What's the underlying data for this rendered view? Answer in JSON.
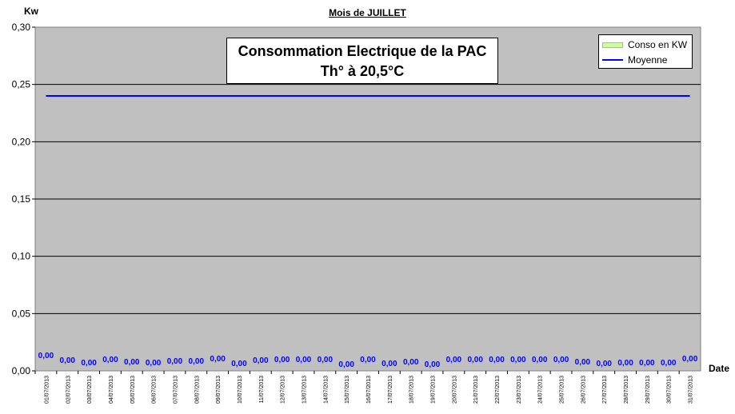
{
  "header": {
    "y_unit": "Kw",
    "month_title": "Mois  de  JUILLET",
    "x_unit": "Date"
  },
  "title_box": {
    "line1": "Consommation Electrique de la PAC",
    "line2": "Th° à  20,5°C"
  },
  "legend": {
    "items": [
      {
        "label": "Conso en KW",
        "color": "#ccff99"
      },
      {
        "label": "Moyenne",
        "color": "#0000ff"
      }
    ]
  },
  "colors": {
    "plot_background": "#c0c0c0",
    "gridline": "#000000",
    "average_line": "#0000ff",
    "data_label": "#0000ff"
  },
  "chart_data": {
    "type": "bar",
    "ylim": [
      0,
      0.3
    ],
    "yticks": [
      "0,00",
      "0,05",
      "0,10",
      "0,15",
      "0,20",
      "0,25",
      "0,30"
    ],
    "grid": true,
    "legend_position": "top-right",
    "categories": [
      "01/07/2013",
      "02/07/2013",
      "03/07/2013",
      "04/07/2013",
      "05/07/2013",
      "06/07/2013",
      "07/07/2013",
      "08/07/2013",
      "09/07/2013",
      "10/07/2013",
      "11/07/2013",
      "12/07/2013",
      "13/07/2013",
      "14/07/2013",
      "15/07/2013",
      "16/07/2013",
      "17/07/2013",
      "18/07/2013",
      "19/07/2013",
      "20/07/2013",
      "21/07/2013",
      "22/07/2013",
      "23/07/2013",
      "24/07/2013",
      "25/07/2013",
      "26/07/2013",
      "27/07/2013",
      "28/07/2013",
      "29/07/2013",
      "30/07/2013",
      "31/07/2013"
    ],
    "series": [
      {
        "name": "Conso en KW",
        "values": [
          0,
          0,
          0,
          0,
          0,
          0,
          0,
          0,
          0,
          0,
          0,
          0,
          0,
          0,
          0,
          0,
          0,
          0,
          0,
          0,
          0,
          0,
          0,
          0,
          0,
          0,
          0,
          0,
          0,
          0,
          0
        ],
        "labels": [
          "0,00",
          "0,00",
          "0,00",
          "0,00",
          "0,00",
          "0,00",
          "0,00",
          "0,00",
          "0,00",
          "0,00",
          "0,00",
          "0,00",
          "0,00",
          "0,00",
          "0,00",
          "0,00",
          "0,00",
          "0,00",
          "0,00",
          "0,00",
          "0,00",
          "0,00",
          "0,00",
          "0,00",
          "0,00",
          "0,00",
          "0,00",
          "0,00",
          "0,00",
          "0,00",
          "0,00"
        ]
      },
      {
        "name": "Moyenne",
        "type": "line",
        "value": 0.24
      }
    ]
  }
}
